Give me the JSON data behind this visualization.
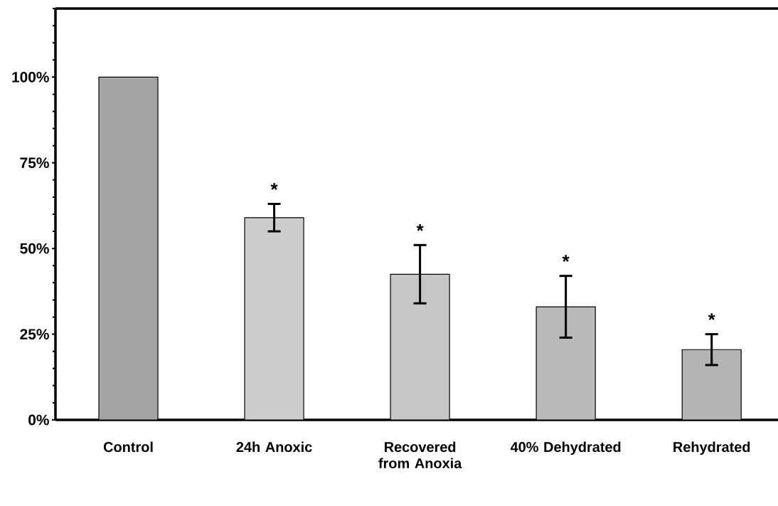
{
  "chart_data": {
    "type": "bar",
    "categories": [
      "Control",
      "24h Anoxic",
      "Recovered from Anoxia",
      "40% Dehydrated",
      "Rehydrated"
    ],
    "values": [
      100,
      59,
      42.5,
      33,
      20.5
    ],
    "errors": [
      null,
      4,
      8.5,
      9,
      4.5
    ],
    "colors": [
      "#a4a4a4",
      "#cdcdcd",
      "#c6c6c6",
      "#b9b9b9",
      "#b4b4b4"
    ],
    "ylim": [
      0,
      120
    ],
    "yticks": [
      {
        "value": 0,
        "label": "0%"
      },
      {
        "value": 5,
        "label": null
      },
      {
        "value": 10,
        "label": null
      },
      {
        "value": 15,
        "label": null
      },
      {
        "value": 20,
        "label": null
      },
      {
        "value": 25,
        "label": "25%"
      },
      {
        "value": 30,
        "label": null
      },
      {
        "value": 35,
        "label": null
      },
      {
        "value": 40,
        "label": null
      },
      {
        "value": 45,
        "label": null
      },
      {
        "value": 50,
        "label": "50%"
      },
      {
        "value": 55,
        "label": null
      },
      {
        "value": 60,
        "label": null
      },
      {
        "value": 65,
        "label": null
      },
      {
        "value": 70,
        "label": null
      },
      {
        "value": 75,
        "label": "75%"
      },
      {
        "value": 80,
        "label": null
      },
      {
        "value": 85,
        "label": null
      },
      {
        "value": 90,
        "label": null
      },
      {
        "value": 95,
        "label": null
      },
      {
        "value": 100,
        "label": "100%"
      },
      {
        "value": 105,
        "label": null
      },
      {
        "value": 110,
        "label": null
      },
      {
        "value": 115,
        "label": null
      },
      {
        "value": 120,
        "label": null
      }
    ],
    "annotations": [
      "*",
      "*",
      "*",
      "*"
    ]
  }
}
